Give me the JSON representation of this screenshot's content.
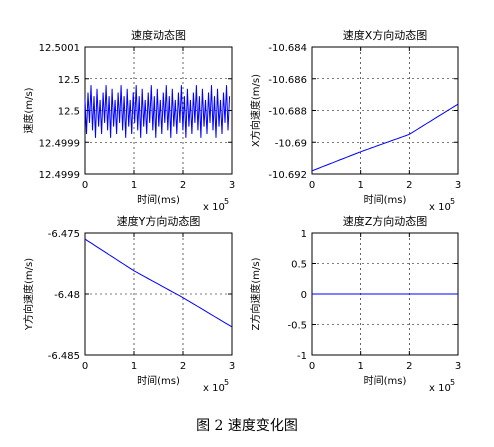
{
  "figure": {
    "caption": "图 2  速度变化图"
  },
  "chart_data": [
    {
      "type": "line",
      "title": "速度动态图",
      "xlabel": "时间(ms)",
      "ylabel": "速度(m/s)",
      "x_multiplier_label": "x 10",
      "x_multiplier_exp": "5",
      "x_ticks": [
        "0",
        "1",
        "2",
        "3"
      ],
      "y_ticks": [
        "12.5001",
        "12.5",
        "12.5",
        "12.4999",
        "12.4999"
      ],
      "xlim": [
        0,
        3
      ],
      "ylim": [
        12.49988,
        12.50012
      ],
      "grid": true,
      "color": "#0000ff",
      "series": [
        {
          "x_start": 0,
          "x_end": 2.95,
          "oscillation_center": 12.5,
          "amplitude_max": 5.5e-05,
          "amplitude_min": 2e-05,
          "cycles": 48
        }
      ]
    },
    {
      "type": "line",
      "title": "速度X方向动态图",
      "xlabel": "时间(ms)",
      "ylabel": "X方向速度(m/s)",
      "x_multiplier_label": "x 10",
      "x_multiplier_exp": "5",
      "x_ticks": [
        "0",
        "1",
        "2",
        "3"
      ],
      "y_ticks": [
        "-10.684",
        "-10.686",
        "-10.688",
        "-10.69",
        "-10.692"
      ],
      "xlim": [
        0,
        3
      ],
      "ylim": [
        -10.692,
        -10.684
      ],
      "grid": true,
      "color": "#0000ff",
      "series": [
        {
          "x": [
            0,
            1,
            2,
            3
          ],
          "y": [
            -10.6918,
            -10.6906,
            -10.6895,
            -10.6876
          ]
        }
      ]
    },
    {
      "type": "line",
      "title": "速度Y方向动态图",
      "xlabel": "时间(ms)",
      "ylabel": "Y方向速度(m/s)",
      "x_multiplier_label": "x 10",
      "x_multiplier_exp": "5",
      "x_ticks": [
        "0",
        "1",
        "2",
        "3"
      ],
      "y_ticks": [
        "-6.475",
        "-6.48",
        "-6.485"
      ],
      "xlim": [
        0,
        3
      ],
      "ylim": [
        -6.485,
        -6.475
      ],
      "grid": true,
      "color": "#0000ff",
      "series": [
        {
          "x": [
            0,
            1,
            2,
            3
          ],
          "y": [
            -6.4755,
            -6.4781,
            -6.4803,
            -6.4827
          ]
        }
      ]
    },
    {
      "type": "line",
      "title": "速度Z方向动态图",
      "xlabel": "时间(ms)",
      "ylabel": "Z方向速度(m/s)",
      "x_multiplier_label": "x 10",
      "x_multiplier_exp": "5",
      "x_ticks": [
        "0",
        "1",
        "2",
        "3"
      ],
      "y_ticks": [
        "1",
        "0.5",
        "0",
        "-0.5",
        "-1"
      ],
      "xlim": [
        0,
        3
      ],
      "ylim": [
        -1,
        1
      ],
      "grid": true,
      "color": "#0000ff",
      "series": [
        {
          "x": [
            0,
            3
          ],
          "y": [
            0,
            0
          ]
        }
      ]
    }
  ]
}
